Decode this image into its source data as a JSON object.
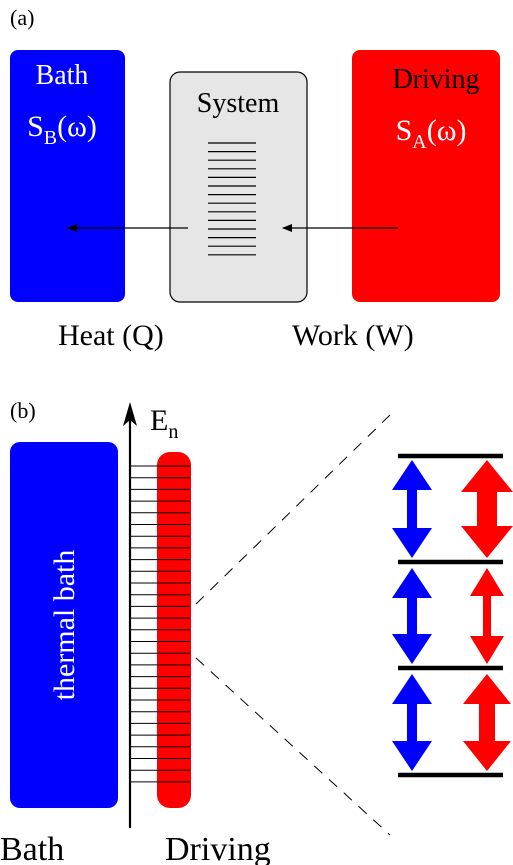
{
  "panel_a": {
    "label": "(a)",
    "bath": {
      "title": "Bath",
      "spectrum_symbol": "S",
      "spectrum_sub": "B",
      "spectrum_arg": "(ω)"
    },
    "system": {
      "title": "System"
    },
    "driving": {
      "title": "Driving",
      "spectrum_symbol": "S",
      "spectrum_sub": "A",
      "spectrum_arg": "(ω)"
    },
    "heat_label": "Heat (Q)",
    "work_label": "Work (W)"
  },
  "panel_b": {
    "label": "(b)",
    "axis_symbol": "E",
    "axis_sub": "n",
    "bath_text": "thermal bath",
    "bottom_bath": "Bath",
    "bottom_driving": "Driving"
  },
  "colors": {
    "bath": "#0000ff",
    "driving": "#ff0000",
    "system_fill": "#e6e6e6",
    "ink": "#000000"
  }
}
